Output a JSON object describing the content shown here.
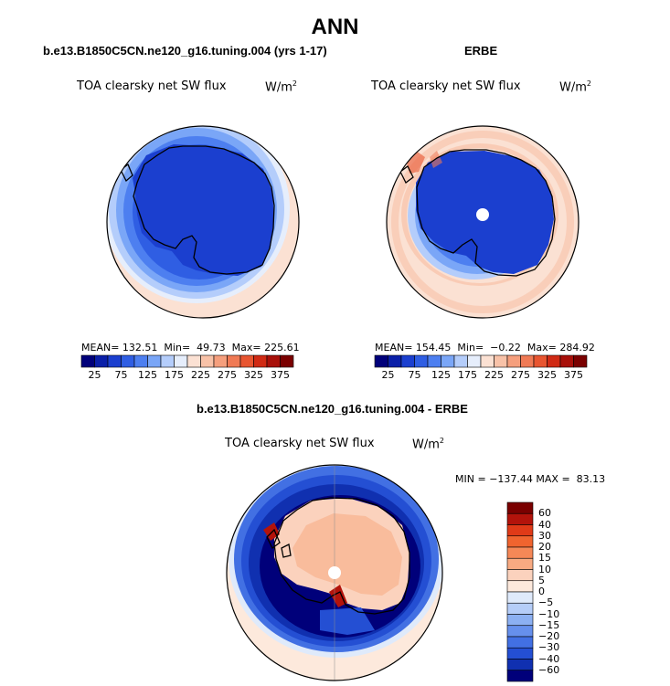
{
  "figure": {
    "title": "ANN",
    "panels": [
      {
        "id": "model",
        "case_title": "b.e13.B1850C5CN.ne120_g16.tuning.004 (yrs 1-17)",
        "variable": "TOA clearsky net SW flux",
        "units": "W/m",
        "units_sup": "2",
        "stats": {
          "mean_label": "MEAN=",
          "mean": "132.51",
          "min_label": "Min=",
          "min": "49.73",
          "max_label": "Max=",
          "max": "225.61"
        },
        "colorbar_ticks": [
          "25",
          "75",
          "125",
          "175",
          "225",
          "275",
          "325",
          "375"
        ]
      },
      {
        "id": "obs",
        "case_title": "ERBE",
        "variable": "TOA clearsky net SW flux",
        "units": "W/m",
        "units_sup": "2",
        "stats": {
          "mean_label": "MEAN=",
          "mean": "154.45",
          "min_label": "Min=",
          "min": "−0.22",
          "max_label": "Max=",
          "max": "284.92"
        },
        "colorbar_ticks": [
          "25",
          "75",
          "125",
          "175",
          "225",
          "275",
          "325",
          "375"
        ]
      },
      {
        "id": "diff",
        "case_title": "b.e13.B1850C5CN.ne120_g16.tuning.004 - ERBE",
        "variable": "TOA clearsky net SW flux",
        "units": "W/m",
        "units_sup": "2",
        "stats": {
          "min_label": "MIN =",
          "min": "−137.44",
          "max_label": "MAX =",
          "max": "83.13"
        },
        "colorbar_ticks": [
          "60",
          "40",
          "30",
          "20",
          "15",
          "10",
          "5",
          "0",
          "−5",
          "−10",
          "−15",
          "−20",
          "−30",
          "−40",
          "−60"
        ]
      }
    ],
    "colors": {
      "abs_scale": [
        "#00007a",
        "#0a1fa8",
        "#1b3fcf",
        "#2f5ee3",
        "#4d7ff0",
        "#7aa6f7",
        "#b4cdfb",
        "#e6eefc",
        "#fbe1d3",
        "#f8c2a8",
        "#f59f7d",
        "#f07a55",
        "#e85530",
        "#d02a14",
        "#a8100a",
        "#7a0000"
      ],
      "diff_scale": [
        "#7a0000",
        "#b3130b",
        "#e03a18",
        "#f0642f",
        "#f58857",
        "#f8aa82",
        "#fbd2bd",
        "#fde9dc",
        "#dfeafb",
        "#b5cdf8",
        "#8cb0f2",
        "#6690ec",
        "#4270e3",
        "#244fd3",
        "#1030b0",
        "#00007a"
      ]
    }
  }
}
